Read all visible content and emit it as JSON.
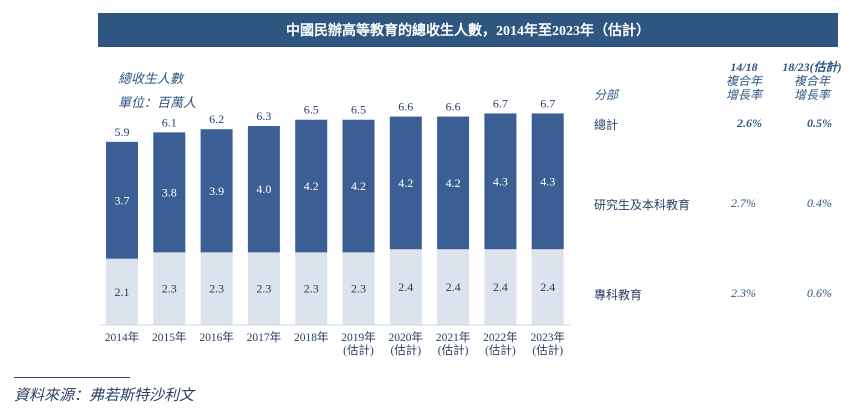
{
  "title": "中國民辦高等教育的總收生人數，2014年至2023年（估計）",
  "legend": {
    "total_label": "總收生人數",
    "unit_label": "單位：百萬人"
  },
  "chart_data": {
    "type": "bar",
    "stacked": true,
    "categories": [
      "2014年",
      "2015年",
      "2016年",
      "2017年",
      "2018年",
      "2019年\n(估計)",
      "2020年\n(估計)",
      "2021年\n(估計)",
      "2022年\n(估計)",
      "2023年\n(估計)"
    ],
    "series": [
      {
        "name": "專科教育",
        "values": [
          2.1,
          2.3,
          2.3,
          2.3,
          2.3,
          2.3,
          2.4,
          2.4,
          2.4,
          2.4
        ],
        "color": "#dde3ec"
      },
      {
        "name": "研究生及本科教育",
        "values": [
          3.7,
          3.8,
          3.9,
          4.0,
          4.2,
          4.2,
          4.2,
          4.2,
          4.3,
          4.3
        ],
        "color": "#3b5e94"
      }
    ],
    "totals": [
      5.9,
      6.1,
      6.2,
      6.3,
      6.5,
      6.5,
      6.6,
      6.6,
      6.7,
      6.7
    ],
    "ylim": [
      0,
      7.6
    ],
    "grid": false
  },
  "side_table": {
    "segment_header": "分部",
    "cagr_headers": [
      {
        "period": "14/18",
        "line1": "複合年",
        "line2": "增長率"
      },
      {
        "period": "18/23(估計)",
        "line1": "複合年",
        "line2": "增長率"
      }
    ],
    "rows": [
      {
        "label": "總計",
        "cagr_14_18": "2.6%",
        "cagr_18_23": "0.5%",
        "bold": true
      },
      {
        "label": "研究生及本科教育",
        "cagr_14_18": "2.7%",
        "cagr_18_23": "0.4%",
        "bold": false
      },
      {
        "label": "專科教育",
        "cagr_14_18": "2.3%",
        "cagr_18_23": "0.6%",
        "bold": false
      }
    ]
  },
  "source": "資料來源：弗若斯特沙利文",
  "colors": {
    "title_bg": "#2f5680",
    "dark_bar": "#3b5e94",
    "light_bar": "#dde3ec",
    "text": "#2a3f66"
  }
}
